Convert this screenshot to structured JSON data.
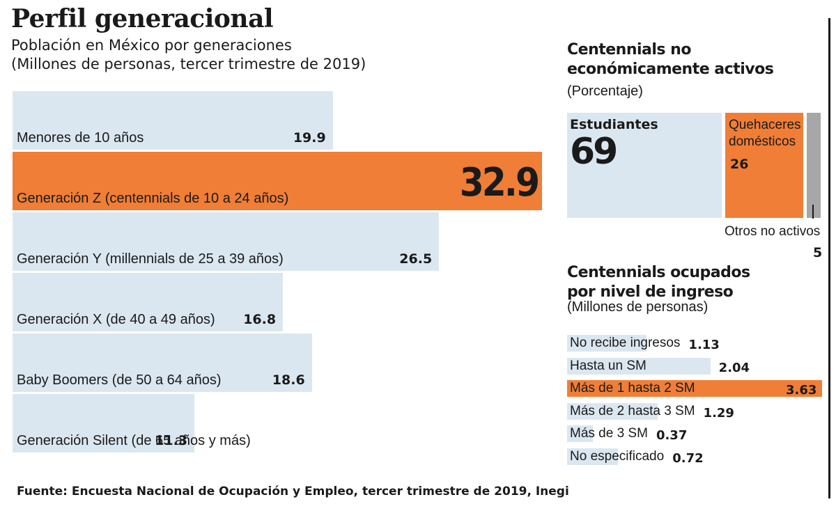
{
  "title": "Perfil generacional",
  "subtitle_line1": "Población en México por generaciones",
  "subtitle_line2": "(Millones de personas, tercer trimestre de 2019)",
  "source": "Fuente: Encuesta Nacional de Ocupación y Empleo, tercer trimestre de 2019, Inegi",
  "colors": {
    "highlight": "#f07e36",
    "base": "#dbe7f0",
    "other": "#a7a7a7",
    "text": "#1a1a1a"
  },
  "chart_data": [
    {
      "type": "bar",
      "orientation": "horizontal",
      "categories": [
        "Menores de 10 años",
        "Generación Z (centennials de 10 a 24 años)",
        "Generación Y (millennials de 25 a 39 años)",
        "Generación X (de 40 a 49 años)",
        "Baby Boomers (de 50 a 64 años)",
        "Generación Silent (de 65 años y más)"
      ],
      "values": [
        19.9,
        32.9,
        26.5,
        16.8,
        18.6,
        11.3
      ],
      "value_labels": [
        "19.9",
        "32.9",
        "26.5",
        "16.8",
        "18.6",
        "11.3"
      ],
      "highlighted_index": 1
    },
    {
      "type": "treemap",
      "title": "Centennials no económicamente activos",
      "subtitle": "(Porcentaje)",
      "categories": [
        "Estudiantes",
        "Quehaceres domésticos",
        "Otros no activos"
      ],
      "values": [
        69,
        26,
        5
      ]
    },
    {
      "type": "bar",
      "orientation": "horizontal",
      "title_line1": "Centennials ocupados",
      "title_line2": "por nivel de ingreso",
      "subtitle": "(Millones de personas)",
      "categories": [
        "No recibe ingresos",
        "Hasta un SM",
        "Más de 1 hasta 2 SM",
        "Más de 2 hasta 3 SM",
        "Más de 3 SM",
        "No especificado"
      ],
      "values": [
        1.13,
        2.04,
        3.63,
        1.29,
        0.37,
        0.72
      ],
      "value_labels": [
        "1.13",
        "2.04",
        "3.63",
        "1.29",
        "0.37",
        "0.72"
      ],
      "highlighted_index": 2
    }
  ],
  "treemap_labels": {
    "estudiantes": "Estudiantes",
    "estudiantes_value": "69",
    "quehaceres_line1": "Quehaceres",
    "quehaceres_line2": "domésticos",
    "quehaceres_value": "26",
    "otros": "Otros no activos",
    "otros_value": "5"
  }
}
